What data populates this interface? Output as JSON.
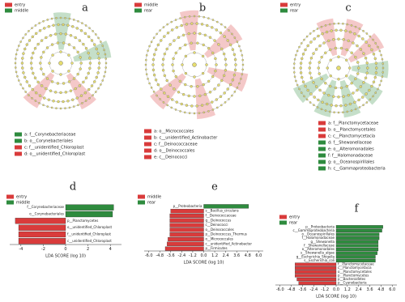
{
  "chart_data": [
    {
      "type": "cladogram",
      "panel": "a",
      "series": [
        {
          "name": "entry",
          "color": "#d93b3b"
        },
        {
          "name": "middle",
          "color": "#2e8b3e"
        }
      ],
      "clades": [
        {
          "label": "a: f__Corynebacteriaceae",
          "color": "#2e8b3e"
        },
        {
          "label": "b: o__Corynebacteriales",
          "color": "#2e8b3e"
        },
        {
          "label": "c: f__unidentified_Chloroplast",
          "color": "#d93b3b"
        },
        {
          "label": "d: o__unidentified_Chloroplast",
          "color": "#d93b3b"
        }
      ]
    },
    {
      "type": "cladogram",
      "panel": "b",
      "series": [
        {
          "name": "middle",
          "color": "#d93b3b"
        },
        {
          "name": "rear",
          "color": "#2e8b3e"
        }
      ],
      "clades": [
        {
          "label": "a: o__Micrococcales",
          "color": "#d93b3b"
        },
        {
          "label": "b: c__unidentified_Actinobacter",
          "color": "#d93b3b"
        },
        {
          "label": "c: f__Deinococcaceae",
          "color": "#d93b3b"
        },
        {
          "label": "d: o__Deinococcales",
          "color": "#d93b3b"
        },
        {
          "label": "e: c__Deinococci",
          "color": "#d93b3b"
        }
      ]
    },
    {
      "type": "cladogram",
      "panel": "c",
      "series": [
        {
          "name": "entry",
          "color": "#d93b3b"
        },
        {
          "name": "rear",
          "color": "#2e8b3e"
        }
      ],
      "clades": [
        {
          "label": "a: f__Planctomycetaceae",
          "color": "#d93b3b"
        },
        {
          "label": "b: o__Planctomycetales",
          "color": "#d93b3b"
        },
        {
          "label": "c: c__Planctomycetacia",
          "color": "#d93b3b"
        },
        {
          "label": "d: f__Shewanellaceae",
          "color": "#2e8b3e"
        },
        {
          "label": "e: o__Alteromonadales",
          "color": "#2e8b3e"
        },
        {
          "label": "f: f__Halomonadaceae",
          "color": "#2e8b3e"
        },
        {
          "label": "g: o__Oceanospirillales",
          "color": "#2e8b3e"
        },
        {
          "label": "h: c__Gammaproteobacteria",
          "color": "#2e8b3e"
        }
      ]
    },
    {
      "type": "bar",
      "panel": "d",
      "xlabel": "LDA SCORE (log 10)",
      "categories": [
        "f__Corynebacteriaceae",
        "o__Corynebacteriales",
        "p__Planctomycetes",
        "o__unidentified_Chloroplast",
        "f__unidentified_Chloroplast",
        "c__unidentified_Chloroplast"
      ],
      "series": [
        {
          "name": "entry",
          "color": "#d93b3b",
          "values": [
            null,
            null,
            -4.5,
            -4.2,
            -4.2,
            -4.2
          ]
        },
        {
          "name": "middle",
          "color": "#2e8b3e",
          "values": [
            4.3,
            4.2,
            null,
            null,
            null,
            null
          ]
        }
      ],
      "xlim": [
        -5,
        5
      ],
      "xticks": [
        -4,
        -2,
        0,
        2,
        4
      ]
    },
    {
      "type": "bar",
      "panel": "e",
      "xlabel": "LDA SCORE (log 10)",
      "categories": [
        "p__Proteobacteria",
        "s__Bacillus_circulans",
        "f__Deinococcaceae",
        "g__Deinococcus",
        "c__Deinococci",
        "o__Deinococcales",
        "p__Deinococcus_Thermus",
        "o__Micrococcales",
        "c__unidentified_Actinobacter",
        "p__Firmicutes"
      ],
      "series": [
        {
          "name": "middle",
          "color": "#d93b3b",
          "values": [
            null,
            -3.6,
            -3.7,
            -3.7,
            -3.7,
            -3.7,
            -3.7,
            -3.9,
            -4.0,
            -4.2
          ]
        },
        {
          "name": "rear",
          "color": "#2e8b3e",
          "values": [
            4.9,
            null,
            null,
            null,
            null,
            null,
            null,
            null,
            null,
            null
          ]
        }
      ],
      "xlim": [
        -6.5,
        6.5
      ],
      "xticks": [
        {
          "value": -6,
          "label": "-6.0"
        },
        -4.8,
        -3.6,
        -2.4,
        -1.2,
        {
          "value": 0,
          "label": "0.0"
        },
        1.2,
        2.4,
        3.6,
        4.8,
        {
          "value": 6,
          "label": "6.0"
        }
      ]
    },
    {
      "type": "bar",
      "panel": "f",
      "xlabel": "LDA SCORE (log 10)",
      "categories": [
        "p__Proteobacteria",
        "c__Gammaproteobacteria",
        "o__Oceanospirillales",
        "f__Halomonadaceae",
        "g__Shewanella",
        "f__Shewanellaceae",
        "o__Alteromonadales",
        "s__Shewanella_algae",
        "g__Escherichia_Shigella",
        "s__Escherichia_coli",
        "f__Planctomycetaceae",
        "c__Planctomycetacia",
        "o__Planctomycetales",
        "p__Planctomycetes",
        "p__Bacteroidetes",
        "p__Cyanobacteria"
      ],
      "series": [
        {
          "name": "entry",
          "color": "#d93b3b",
          "values": [
            null,
            null,
            null,
            null,
            null,
            null,
            null,
            null,
            null,
            null,
            -4.4,
            -4.4,
            -4.4,
            -4.4,
            -4.2,
            -4.0
          ]
        },
        {
          "name": "rear",
          "color": "#2e8b3e",
          "values": [
            5.0,
            4.9,
            4.6,
            4.6,
            4.5,
            4.5,
            4.5,
            4.4,
            4.2,
            4.2,
            null,
            null,
            null,
            null,
            null,
            null
          ]
        }
      ],
      "xlim": [
        -6.5,
        6.5
      ],
      "xticks": [
        {
          "value": -6,
          "label": "-6.0"
        },
        -4.8,
        -3.6,
        -2.4,
        -1.2,
        {
          "value": 0,
          "label": "0.0"
        },
        1.2,
        2.4,
        3.6,
        4.8,
        {
          "value": 6,
          "label": "6.0"
        }
      ]
    }
  ]
}
